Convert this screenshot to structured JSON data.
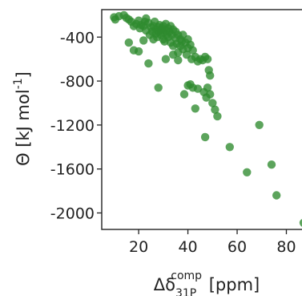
{
  "chart_data": {
    "type": "scatter",
    "xlabel": {
      "prefix": "Δδ",
      "sub": "31P",
      "sup": "comp",
      "suffix": " [ppm]"
    },
    "ylabel": {
      "main": "Θ  [kJ mol",
      "sup": "-1",
      "close": "]"
    },
    "xlim": [
      5,
      87
    ],
    "ylim": [
      -2150,
      -150
    ],
    "xticks": [
      20,
      40,
      60,
      80
    ],
    "xtick_labels": [
      "20",
      "40",
      "60",
      "80"
    ],
    "yticks": [
      -400,
      -800,
      -1200,
      -1600,
      -2000
    ],
    "ytick_labels": [
      "-400",
      "-800",
      "-1200",
      "-1600",
      "-2000"
    ],
    "marker_color": "#2e8b2e",
    "grid": false,
    "points": [
      [
        10,
        -220
      ],
      [
        10.5,
        -240
      ],
      [
        12,
        -210
      ],
      [
        14,
        -200
      ],
      [
        15,
        -225
      ],
      [
        16,
        -240
      ],
      [
        17,
        -260
      ],
      [
        18,
        -300
      ],
      [
        19,
        -280
      ],
      [
        20,
        -250
      ],
      [
        20.5,
        -320
      ],
      [
        21,
        -290
      ],
      [
        22,
        -300
      ],
      [
        22.5,
        -260
      ],
      [
        23,
        -340
      ],
      [
        23,
        -230
      ],
      [
        24,
        -270
      ],
      [
        24.5,
        -380
      ],
      [
        25,
        -310
      ],
      [
        25.5,
        -350
      ],
      [
        26,
        -300
      ],
      [
        26,
        -420
      ],
      [
        26.5,
        -260
      ],
      [
        27,
        -330
      ],
      [
        27,
        -370
      ],
      [
        27.5,
        -400
      ],
      [
        28,
        -350
      ],
      [
        28,
        -310
      ],
      [
        28.5,
        -290
      ],
      [
        29,
        -340
      ],
      [
        29,
        -380
      ],
      [
        29.5,
        -320
      ],
      [
        30,
        -300
      ],
      [
        30,
        -360
      ],
      [
        30,
        -420
      ],
      [
        30.5,
        -440
      ],
      [
        31,
        -280
      ],
      [
        31,
        -340
      ],
      [
        31.5,
        -380
      ],
      [
        32,
        -320
      ],
      [
        32,
        -400
      ],
      [
        32.5,
        -350
      ],
      [
        33,
        -300
      ],
      [
        33,
        -450
      ],
      [
        33.5,
        -380
      ],
      [
        34,
        -330
      ],
      [
        34,
        -480
      ],
      [
        35,
        -350
      ],
      [
        35,
        -410
      ],
      [
        35.5,
        -460
      ],
      [
        36,
        -380
      ],
      [
        36,
        -540
      ],
      [
        37,
        -420
      ],
      [
        37,
        -480
      ],
      [
        37.5,
        -440
      ],
      [
        38,
        -510
      ],
      [
        38,
        -380
      ],
      [
        39,
        -450
      ],
      [
        39.5,
        -560
      ],
      [
        40,
        -500
      ],
      [
        40,
        -420
      ],
      [
        41,
        -470
      ],
      [
        41.5,
        -600
      ],
      [
        42,
        -520
      ],
      [
        43,
        -580
      ],
      [
        44,
        -620
      ],
      [
        45,
        -600
      ],
      [
        46,
        -610
      ],
      [
        47,
        -580
      ],
      [
        48,
        -600
      ],
      [
        48.5,
        -700
      ],
      [
        49,
        -750
      ],
      [
        46.5,
        -900
      ],
      [
        47.5,
        -950
      ],
      [
        48,
        -860
      ],
      [
        49,
        -920
      ],
      [
        50,
        -1000
      ],
      [
        51,
        -1060
      ],
      [
        52,
        -1120
      ],
      [
        43,
        -1050
      ],
      [
        42,
        -860
      ],
      [
        41,
        -830
      ],
      [
        40,
        -840
      ],
      [
        38.5,
        -920
      ],
      [
        44,
        -870
      ],
      [
        28,
        -860
      ],
      [
        24,
        -640
      ],
      [
        20,
        -530
      ],
      [
        22,
        -430
      ],
      [
        18,
        -520
      ],
      [
        16,
        -450
      ],
      [
        34,
        -560
      ],
      [
        36,
        -610
      ],
      [
        31,
        -600
      ],
      [
        47,
        -1310
      ],
      [
        57,
        -1400
      ],
      [
        64,
        -1630
      ],
      [
        69,
        -1200
      ],
      [
        74,
        -1560
      ],
      [
        76,
        -1840
      ],
      [
        87,
        -2090
      ]
    ]
  }
}
